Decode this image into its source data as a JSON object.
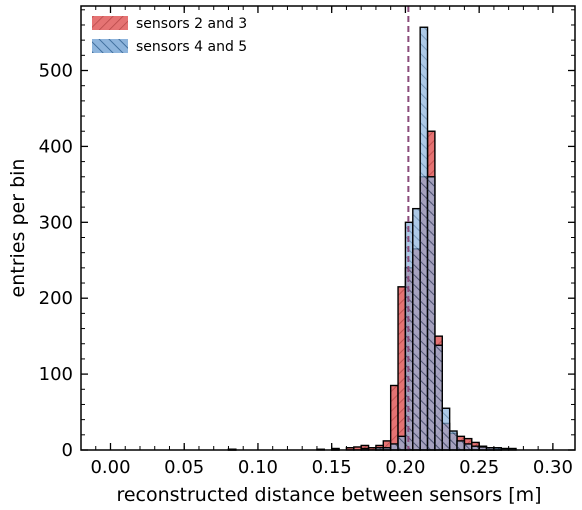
{
  "chart_data": {
    "type": "bar",
    "xlabel": "reconstructed distance between sensors [m]",
    "ylabel": "entries per bin",
    "xlim": [
      -0.02,
      0.315
    ],
    "ylim": [
      0,
      585
    ],
    "bin_width": 0.005,
    "x_ticks": [
      "0.00",
      "0.05",
      "0.10",
      "0.15",
      "0.20",
      "0.25",
      "0.30"
    ],
    "x_tick_values": [
      0.0,
      0.05,
      0.1,
      0.15,
      0.2,
      0.25,
      0.3
    ],
    "y_ticks": [
      "0",
      "100",
      "200",
      "300",
      "400",
      "500"
    ],
    "y_tick_values": [
      0,
      100,
      200,
      300,
      400,
      500
    ],
    "reference_line_x": 0.202,
    "legend_position": "top-left",
    "series": [
      {
        "name": "sensors 2 and 3",
        "color": "#e57373",
        "hatch": "forward-diagonal",
        "bin_starts": [
          0.08,
          0.14,
          0.15,
          0.16,
          0.165,
          0.17,
          0.175,
          0.18,
          0.185,
          0.19,
          0.195,
          0.2,
          0.205,
          0.21,
          0.215,
          0.22,
          0.225,
          0.23,
          0.235,
          0.24,
          0.245,
          0.25,
          0.255,
          0.26
        ],
        "values": [
          1,
          1,
          2,
          3,
          4,
          6,
          3,
          6,
          12,
          85,
          215,
          240,
          265,
          360,
          420,
          150,
          35,
          22,
          18,
          15,
          10,
          5,
          3,
          2
        ]
      },
      {
        "name": "sensors 4 and 5",
        "color": "#7fa9d6",
        "hatch": "back-diagonal",
        "bin_starts": [
          0.08,
          0.15,
          0.17,
          0.18,
          0.185,
          0.19,
          0.195,
          0.2,
          0.205,
          0.21,
          0.215,
          0.22,
          0.225,
          0.23,
          0.235,
          0.24,
          0.245,
          0.25,
          0.255,
          0.26,
          0.265,
          0.27
        ],
        "values": [
          1,
          1,
          2,
          3,
          3,
          8,
          18,
          300,
          318,
          557,
          360,
          138,
          55,
          25,
          12,
          8,
          5,
          4,
          3,
          3,
          2,
          2
        ]
      }
    ]
  }
}
